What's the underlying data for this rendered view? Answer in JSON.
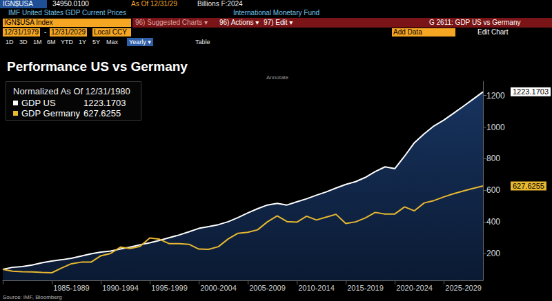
{
  "page": {
    "ticker": "IGN$USA",
    "last": "34950.0100",
    "as_of": "As Of 12/31/29",
    "units": "Billions F:2024",
    "description": "IMF United States GDP Current Prices",
    "source_name": "International Monetary Fund",
    "security": "IGN$USA Index",
    "menu": [
      "96) Suggested Charts ▾",
      "96) Actions ▾",
      "97) Edit ▾"
    ],
    "chart_id": "G 2611: GDP US vs Germany",
    "start_date": "12/31/1979",
    "date_separator": "-",
    "end_date": "12/31/2029",
    "currency": "Local CCY",
    "add_data": "Add Data",
    "edit_chart": "Edit Chart",
    "periods": [
      "1D",
      "3D",
      "1M",
      "6M",
      "YTD",
      "1Y",
      "5Y",
      "Max"
    ],
    "frequency": "Yearly ▾",
    "table": "Table",
    "annotate": "Annotate",
    "footer": "Source: IMF, Bloomberg"
  },
  "chart_data": {
    "type": "line",
    "title": "Performance US vs Germany",
    "subtitle": "Normalized As Of 12/31/1980",
    "categories": [
      null,
      null,
      null,
      null,
      null,
      null,
      null,
      "1985-1989",
      null,
      null,
      null,
      null,
      "1990-1994",
      null,
      null,
      null,
      null,
      "1995-1999",
      null,
      null,
      null,
      null,
      "2000-2004",
      null,
      null,
      null,
      null,
      "2005-2009",
      null,
      null,
      null,
      null,
      "2010-2014",
      null,
      null,
      null,
      null,
      "2015-2019",
      null,
      null,
      null,
      null,
      "2020-2024",
      null,
      null,
      null,
      null,
      "2025-2029",
      null,
      null
    ],
    "series": [
      {
        "name": "GDP US",
        "color": "#ffffff",
        "type": "area",
        "values": [
          100,
          112.3,
          117,
          127.2,
          141.3,
          151.9,
          160.3,
          169.9,
          183.3,
          197.5,
          208.7,
          215.5,
          228.2,
          240,
          255.1,
          267.4,
          282.6,
          300.2,
          317.2,
          337.1,
          358.8,
          370.4,
          382.5,
          401,
          427.6,
          456.4,
          483.6,
          506.6,
          517,
          506.7,
          526.7,
          546,
          568.9,
          589.5,
          614.3,
          637.2,
          654.4,
          681.7,
          718.7,
          748.4,
          737.1,
          816,
          901.1,
          957.7,
          1007.4,
          1044.5,
          1088,
          1132,
          1177,
          1223.1703
        ]
      },
      {
        "name": "GDP Germany",
        "color": "#e8b830",
        "type": "line",
        "values": [
          100,
          88,
          85,
          83,
          80,
          78,
          108,
          135,
          145,
          145,
          185,
          200,
          240,
          232,
          245,
          298,
          290,
          262,
          262,
          258,
          228,
          226,
          243,
          292,
          328,
          334,
          350,
          400,
          438,
          402,
          398,
          436,
          412,
          430,
          448,
          390,
          400,
          425,
          460,
          450,
          450,
          495,
          470,
          520,
          535,
          558,
          578,
          596,
          612,
          627.6255
        ]
      }
    ],
    "ylim": [
      30,
      1290
    ],
    "yticks": [
      200,
      400,
      600,
      800,
      1000,
      1200
    ],
    "grid": false,
    "legend": "top-left"
  }
}
